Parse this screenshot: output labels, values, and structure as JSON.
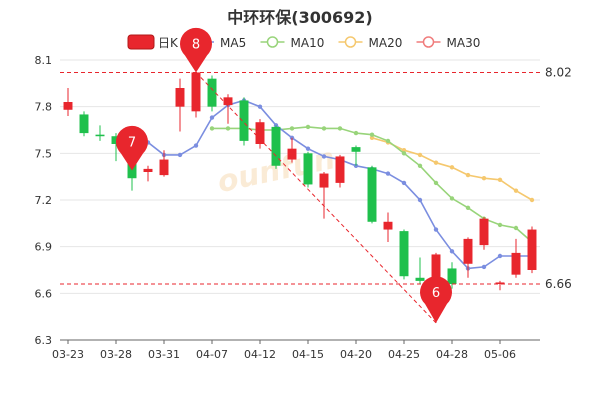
{
  "chart_data": {
    "type": "candlestick",
    "title": "中环环保(300692)",
    "legend": [
      {
        "label": "日K",
        "color": "#e8262d",
        "kind": "candle"
      },
      {
        "label": "MA5",
        "color": "#7b8ee0",
        "kind": "line"
      },
      {
        "label": "MA10",
        "color": "#98d47a",
        "kind": "line"
      },
      {
        "label": "MA20",
        "color": "#f5c86e",
        "kind": "line"
      },
      {
        "label": "MA30",
        "color": "#f07c7c",
        "kind": "line"
      }
    ],
    "ylim": [
      6.3,
      8.1
    ],
    "yticks": [
      "8.1",
      "7.8",
      "7.5",
      "7.2",
      "6.9",
      "6.6",
      "6.3"
    ],
    "xticks": [
      {
        "label": "03-23",
        "index": 0
      },
      {
        "label": "03-28",
        "index": 3
      },
      {
        "label": "03-31",
        "index": 6
      },
      {
        "label": "04-07",
        "index": 9
      },
      {
        "label": "04-12",
        "index": 12
      },
      {
        "label": "04-15",
        "index": 15
      },
      {
        "label": "04-20",
        "index": 18
      },
      {
        "label": "04-25",
        "index": 21
      },
      {
        "label": "04-28",
        "index": 24
      },
      {
        "label": "05-06",
        "index": 27
      }
    ],
    "reference_lines": [
      {
        "value": 8.02,
        "label": "8.02"
      },
      {
        "value": 6.66,
        "label": "6.66"
      }
    ],
    "markers": [
      {
        "label": "7",
        "index": 4,
        "value": 7.39
      },
      {
        "label": "8",
        "index": 8,
        "value": 8.02
      },
      {
        "label": "6",
        "index": 23,
        "value": 6.41
      }
    ],
    "candles": [
      {
        "o": 7.78,
        "c": 7.83,
        "h": 7.92,
        "l": 7.74
      },
      {
        "o": 7.75,
        "c": 7.63,
        "h": 7.77,
        "l": 7.61
      },
      {
        "o": 7.62,
        "c": 7.61,
        "h": 7.68,
        "l": 7.58
      },
      {
        "o": 7.61,
        "c": 7.56,
        "h": 7.63,
        "l": 7.45
      },
      {
        "o": 7.44,
        "c": 7.34,
        "h": 7.46,
        "l": 7.26
      },
      {
        "o": 7.38,
        "c": 7.4,
        "h": 7.42,
        "l": 7.32
      },
      {
        "o": 7.36,
        "c": 7.46,
        "h": 7.52,
        "l": 7.35
      },
      {
        "o": 7.8,
        "c": 7.92,
        "h": 7.98,
        "l": 7.64
      },
      {
        "o": 7.77,
        "c": 8.02,
        "h": 8.04,
        "l": 7.73
      },
      {
        "o": 7.98,
        "c": 7.8,
        "h": 8.0,
        "l": 7.77
      },
      {
        "o": 7.81,
        "c": 7.86,
        "h": 7.88,
        "l": 7.69
      },
      {
        "o": 7.84,
        "c": 7.58,
        "h": 7.86,
        "l": 7.55
      },
      {
        "o": 7.56,
        "c": 7.7,
        "h": 7.72,
        "l": 7.53
      },
      {
        "o": 7.67,
        "c": 7.42,
        "h": 7.68,
        "l": 7.4
      },
      {
        "o": 7.46,
        "c": 7.53,
        "h": 7.6,
        "l": 7.44
      },
      {
        "o": 7.5,
        "c": 7.3,
        "h": 7.51,
        "l": 7.28
      },
      {
        "o": 7.28,
        "c": 7.37,
        "h": 7.38,
        "l": 7.08
      },
      {
        "o": 7.31,
        "c": 7.48,
        "h": 7.49,
        "l": 7.28
      },
      {
        "o": 7.54,
        "c": 7.51,
        "h": 7.55,
        "l": 7.42
      },
      {
        "o": 7.41,
        "c": 7.06,
        "h": 7.42,
        "l": 7.05
      },
      {
        "o": 7.01,
        "c": 7.06,
        "h": 7.12,
        "l": 6.93
      },
      {
        "o": 7.0,
        "c": 6.71,
        "h": 7.01,
        "l": 6.69
      },
      {
        "o": 6.7,
        "c": 6.68,
        "h": 6.83,
        "l": 6.66
      },
      {
        "o": 6.66,
        "c": 6.85,
        "h": 6.86,
        "l": 6.41
      },
      {
        "o": 6.76,
        "c": 6.66,
        "h": 6.8,
        "l": 6.63
      },
      {
        "o": 6.79,
        "c": 6.95,
        "h": 6.96,
        "l": 6.7
      },
      {
        "o": 6.91,
        "c": 7.08,
        "h": 7.09,
        "l": 6.88
      },
      {
        "o": 6.66,
        "c": 6.67,
        "h": 6.68,
        "l": 6.62
      },
      {
        "o": 6.72,
        "c": 6.86,
        "h": 6.95,
        "l": 6.7
      },
      {
        "o": 6.75,
        "c": 7.01,
        "h": 7.03,
        "l": 6.73
      }
    ],
    "ma5": [
      null,
      null,
      null,
      null,
      7.6,
      7.57,
      7.49,
      7.49,
      7.55,
      7.73,
      7.81,
      7.84,
      7.8,
      7.68,
      7.6,
      7.53,
      7.48,
      7.46,
      7.42,
      7.4,
      7.37,
      7.31,
      7.2,
      7.01,
      6.87,
      6.76,
      6.77,
      6.84,
      6.84,
      6.84
    ],
    "ma10": [
      null,
      null,
      null,
      null,
      null,
      null,
      null,
      null,
      null,
      7.66,
      7.66,
      7.66,
      7.65,
      7.65,
      7.66,
      7.67,
      7.66,
      7.66,
      7.63,
      7.62,
      7.58,
      7.5,
      7.42,
      7.31,
      7.21,
      7.15,
      7.08,
      7.04,
      7.02,
      6.93
    ],
    "ma20": [
      null,
      null,
      null,
      null,
      null,
      null,
      null,
      null,
      null,
      null,
      null,
      null,
      null,
      null,
      null,
      null,
      null,
      null,
      null,
      7.6,
      7.57,
      7.52,
      7.49,
      7.44,
      7.41,
      7.36,
      7.34,
      7.33,
      7.26,
      7.2
    ],
    "ma30": []
  }
}
